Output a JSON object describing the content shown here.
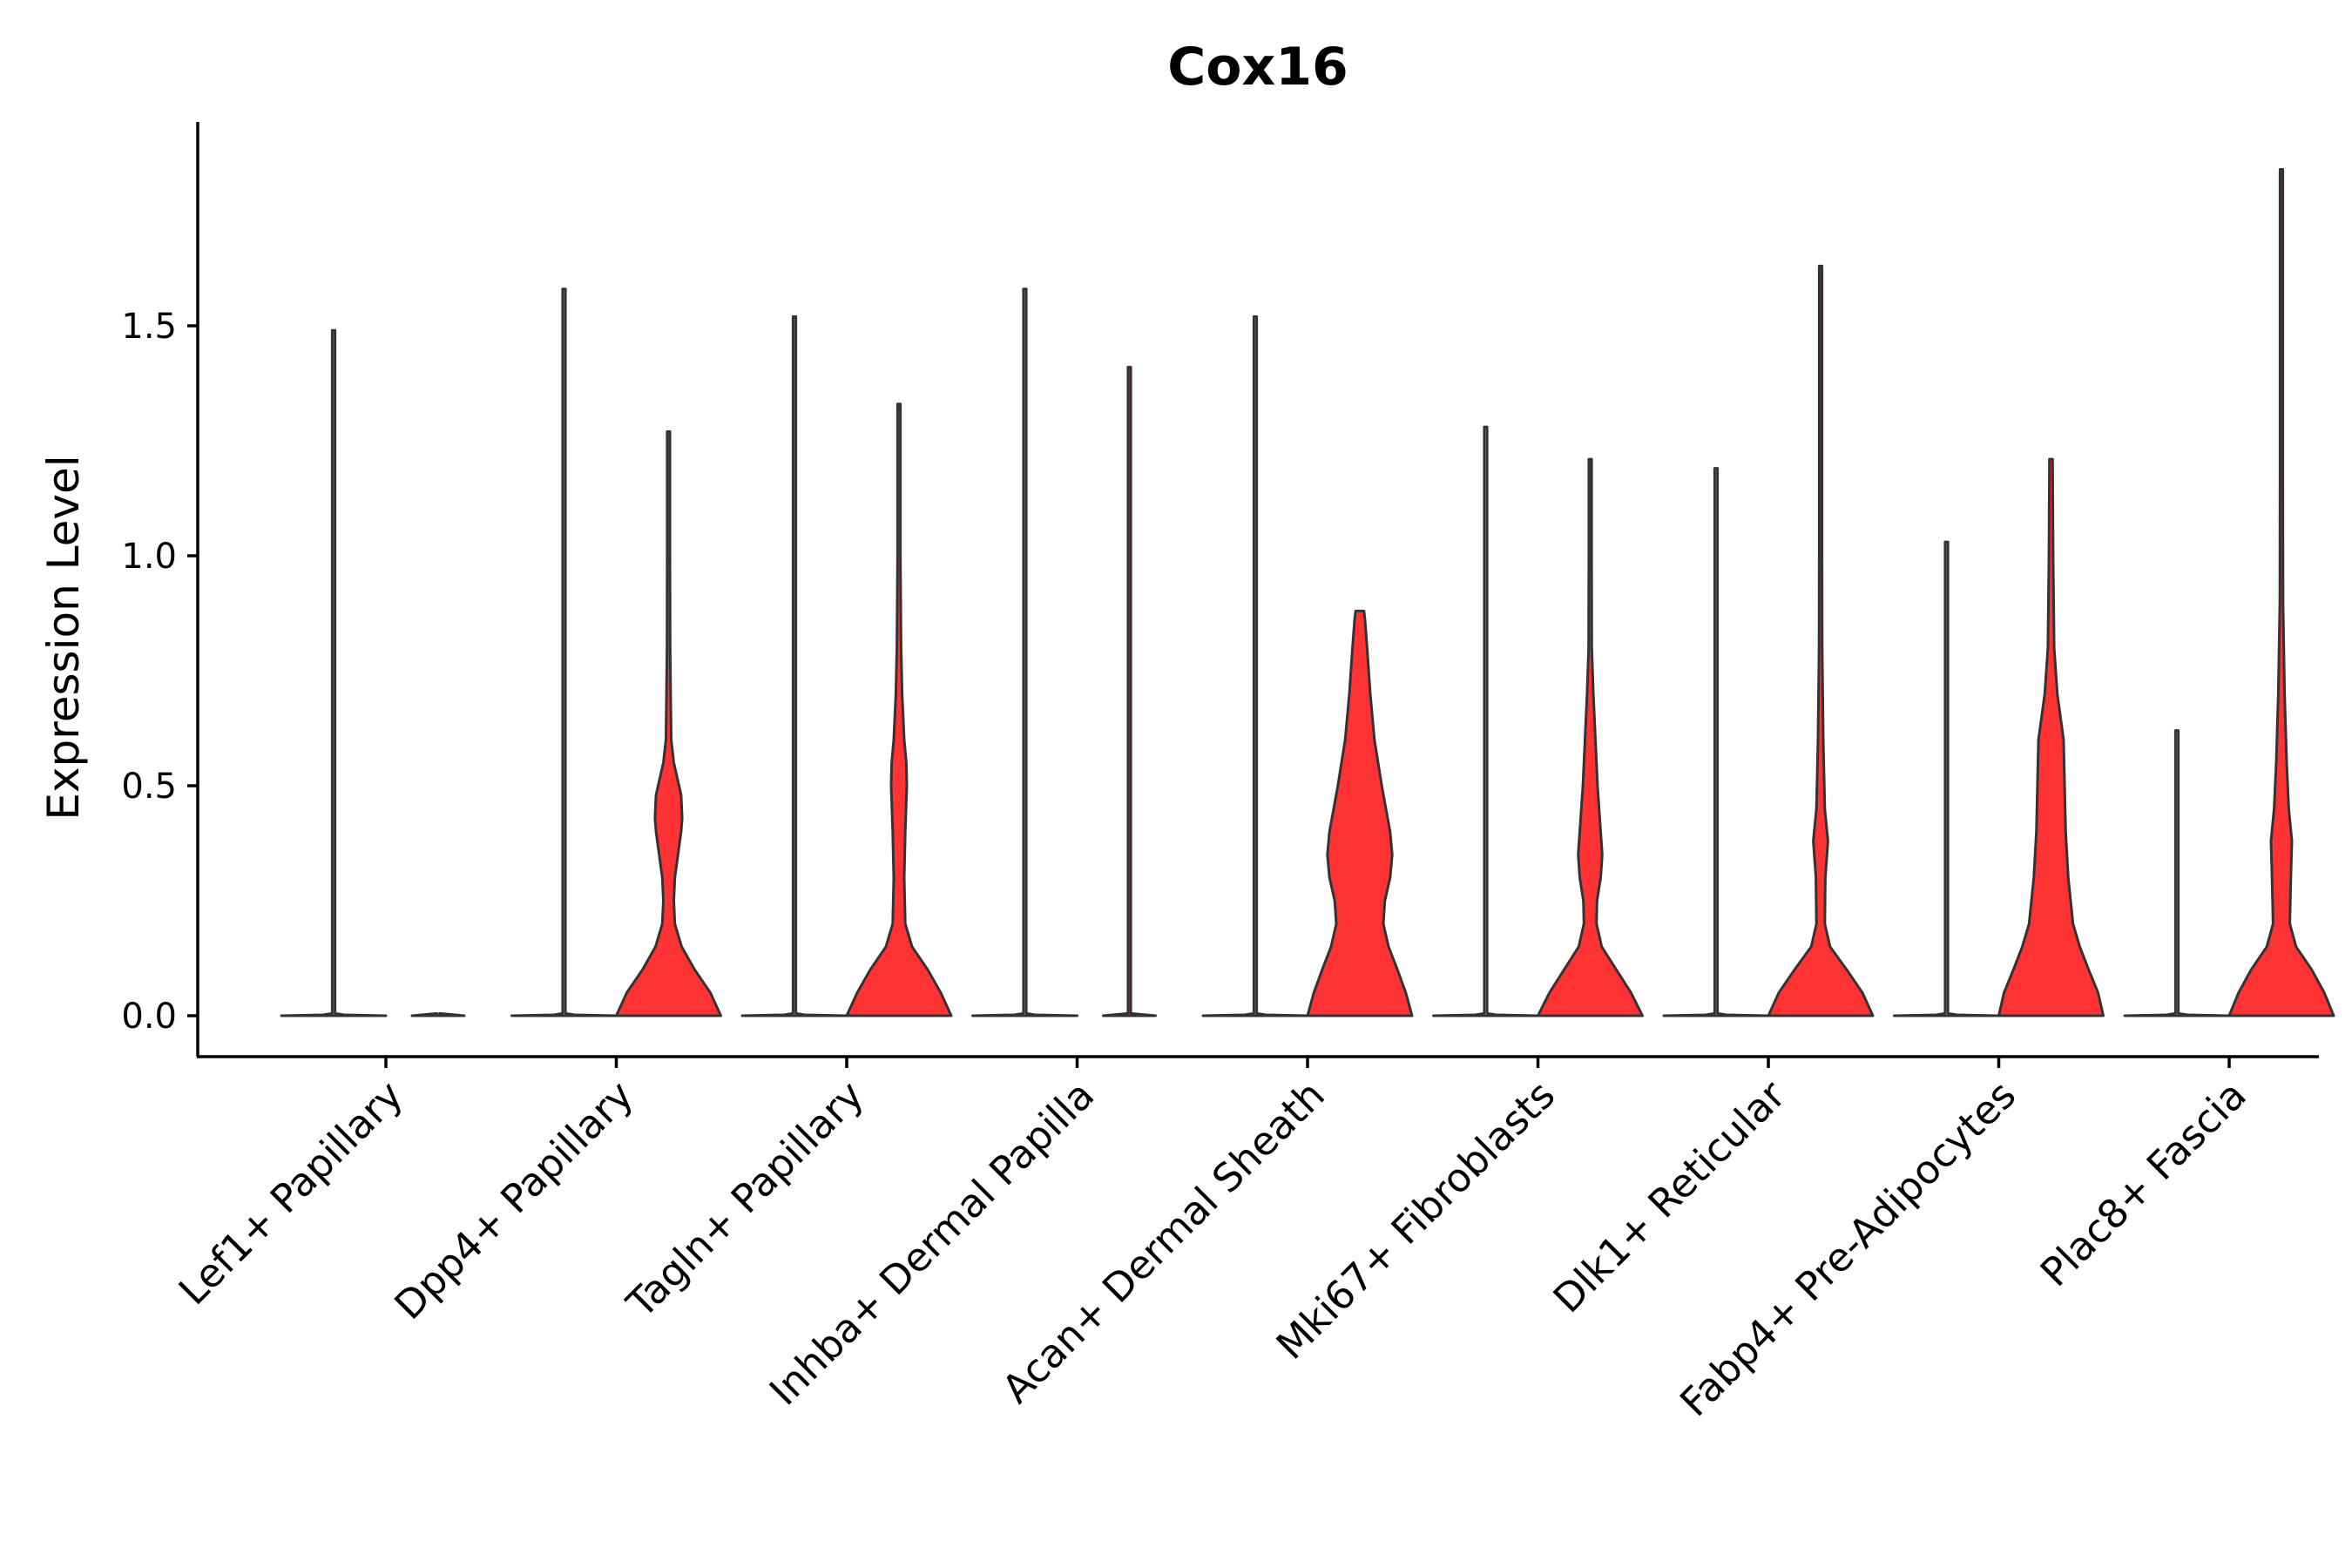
{
  "chart_data": {
    "type": "violin",
    "title": "Cox16",
    "ylabel": "Expression Level",
    "xlabel": "",
    "ylim": [
      -0.09,
      1.94
    ],
    "yticks": [
      "0.0",
      "0.5",
      "1.0",
      "1.5"
    ],
    "ytick_values": [
      0,
      0.5,
      1.0,
      1.5
    ],
    "grid": false,
    "legend": "none",
    "categories": [
      "Lef1+ Papillary",
      "Dpp4+ Papillary",
      "Tagln+ Papillary",
      "Inhba+ Dermal Papilla",
      "Acan+ Dermal Sheath",
      "Mki67+ Fibroblasts",
      "Dlk1+ Reticular",
      "Fabp4+ Pre-Adipocytes",
      "Plac8+ Fascia"
    ],
    "series": [
      {
        "name": "",
        "color": "#222222",
        "max_values": [
          1.49,
          1.58,
          1.52,
          1.58,
          1.52,
          1.28,
          1.19,
          1.03,
          0.62
        ],
        "density_profiles": [
          [
            [
              0,
              1.0
            ],
            [
              0.002,
              0.2
            ],
            [
              0.005,
              0.02
            ],
            [
              0.3,
              0.01
            ],
            [
              1.49,
              0.005
            ]
          ],
          [
            [
              0,
              1.0
            ],
            [
              0.002,
              0.2
            ],
            [
              0.005,
              0.02
            ],
            [
              0.3,
              0.01
            ],
            [
              1.58,
              0.005
            ]
          ],
          [
            [
              0,
              1.0
            ],
            [
              0.002,
              0.2
            ],
            [
              0.005,
              0.02
            ],
            [
              0.3,
              0.01
            ],
            [
              1.52,
              0.005
            ]
          ],
          [
            [
              0,
              1.0
            ],
            [
              0.002,
              0.2
            ],
            [
              0.005,
              0.02
            ],
            [
              0.3,
              0.01
            ],
            [
              1.58,
              0.005
            ]
          ],
          [
            [
              0,
              1.0
            ],
            [
              0.002,
              0.2
            ],
            [
              0.005,
              0.02
            ],
            [
              0.3,
              0.01
            ],
            [
              1.52,
              0.005
            ]
          ],
          [
            [
              0,
              1.0
            ],
            [
              0.002,
              0.2
            ],
            [
              0.005,
              0.02
            ],
            [
              0.3,
              0.01
            ],
            [
              1.28,
              0.005
            ]
          ],
          [
            [
              0,
              1.0
            ],
            [
              0.002,
              0.2
            ],
            [
              0.005,
              0.02
            ],
            [
              0.3,
              0.01
            ],
            [
              1.19,
              0.005
            ]
          ],
          [
            [
              0,
              1.0
            ],
            [
              0.002,
              0.2
            ],
            [
              0.005,
              0.02
            ],
            [
              0.3,
              0.01
            ],
            [
              1.03,
              0.005
            ]
          ],
          [
            [
              0,
              1.0
            ],
            [
              0.002,
              0.2
            ],
            [
              0.005,
              0.02
            ],
            [
              0.3,
              0.01
            ],
            [
              0.62,
              0.005
            ]
          ]
        ]
      },
      {
        "name": "",
        "color": "#ff3333",
        "max_values": [
          0.0,
          1.27,
          1.33,
          1.41,
          0.88,
          1.21,
          1.63,
          1.21,
          1.84
        ],
        "density_profiles": [
          [
            [
              0,
              0.5
            ],
            [
              0.005,
              0.02
            ],
            [
              0.002,
              0.005
            ]
          ],
          [
            [
              0,
              1.0
            ],
            [
              0.05,
              0.8
            ],
            [
              0.1,
              0.5
            ],
            [
              0.15,
              0.25
            ],
            [
              0.2,
              0.12
            ],
            [
              0.25,
              0.1
            ],
            [
              0.3,
              0.12
            ],
            [
              0.35,
              0.18
            ],
            [
              0.4,
              0.24
            ],
            [
              0.43,
              0.26
            ],
            [
              0.48,
              0.24
            ],
            [
              0.55,
              0.1
            ],
            [
              0.6,
              0.05
            ],
            [
              0.7,
              0.04
            ],
            [
              0.8,
              0.03
            ],
            [
              1.0,
              0.015
            ],
            [
              1.27,
              0.005
            ]
          ],
          [
            [
              0,
              1.0
            ],
            [
              0.05,
              0.8
            ],
            [
              0.1,
              0.55
            ],
            [
              0.15,
              0.25
            ],
            [
              0.2,
              0.12
            ],
            [
              0.3,
              0.1
            ],
            [
              0.4,
              0.12
            ],
            [
              0.5,
              0.15
            ],
            [
              0.55,
              0.14
            ],
            [
              0.6,
              0.1
            ],
            [
              0.7,
              0.06
            ],
            [
              0.8,
              0.04
            ],
            [
              1.0,
              0.015
            ],
            [
              1.33,
              0.005
            ]
          ],
          [
            [
              0,
              0.5
            ],
            [
              0.005,
              0.02
            ],
            [
              0.3,
              0.01
            ],
            [
              1.41,
              0.005
            ]
          ],
          [
            [
              0,
              1.0
            ],
            [
              0.05,
              0.88
            ],
            [
              0.1,
              0.72
            ],
            [
              0.15,
              0.55
            ],
            [
              0.2,
              0.45
            ],
            [
              0.25,
              0.48
            ],
            [
              0.3,
              0.58
            ],
            [
              0.35,
              0.62
            ],
            [
              0.4,
              0.58
            ],
            [
              0.5,
              0.42
            ],
            [
              0.6,
              0.28
            ],
            [
              0.7,
              0.2
            ],
            [
              0.8,
              0.14
            ],
            [
              0.86,
              0.1
            ],
            [
              0.88,
              0.08
            ]
          ],
          [
            [
              0,
              1.0
            ],
            [
              0.05,
              0.78
            ],
            [
              0.1,
              0.5
            ],
            [
              0.15,
              0.22
            ],
            [
              0.2,
              0.12
            ],
            [
              0.25,
              0.13
            ],
            [
              0.3,
              0.2
            ],
            [
              0.35,
              0.23
            ],
            [
              0.4,
              0.2
            ],
            [
              0.5,
              0.14
            ],
            [
              0.6,
              0.1
            ],
            [
              0.7,
              0.06
            ],
            [
              0.8,
              0.03
            ],
            [
              1.0,
              0.015
            ],
            [
              1.21,
              0.005
            ]
          ],
          [
            [
              0,
              1.0
            ],
            [
              0.05,
              0.8
            ],
            [
              0.1,
              0.5
            ],
            [
              0.15,
              0.18
            ],
            [
              0.2,
              0.08
            ],
            [
              0.3,
              0.09
            ],
            [
              0.38,
              0.14
            ],
            [
              0.45,
              0.08
            ],
            [
              0.6,
              0.05
            ],
            [
              0.8,
              0.03
            ],
            [
              1.0,
              0.015
            ],
            [
              1.3,
              0.01
            ],
            [
              1.63,
              0.005
            ]
          ],
          [
            [
              0,
              1.0
            ],
            [
              0.05,
              0.9
            ],
            [
              0.1,
              0.72
            ],
            [
              0.15,
              0.55
            ],
            [
              0.2,
              0.42
            ],
            [
              0.3,
              0.33
            ],
            [
              0.4,
              0.28
            ],
            [
              0.5,
              0.26
            ],
            [
              0.6,
              0.24
            ],
            [
              0.7,
              0.12
            ],
            [
              0.8,
              0.06
            ],
            [
              1.0,
              0.04
            ],
            [
              1.21,
              0.03
            ]
          ],
          [
            [
              0,
              1.0
            ],
            [
              0.05,
              0.82
            ],
            [
              0.1,
              0.58
            ],
            [
              0.15,
              0.28
            ],
            [
              0.2,
              0.16
            ],
            [
              0.3,
              0.18
            ],
            [
              0.38,
              0.2
            ],
            [
              0.45,
              0.14
            ],
            [
              0.55,
              0.1
            ],
            [
              0.7,
              0.06
            ],
            [
              0.9,
              0.03
            ],
            [
              1.2,
              0.015
            ],
            [
              1.5,
              0.01
            ],
            [
              1.84,
              0.005
            ]
          ]
        ]
      }
    ]
  }
}
